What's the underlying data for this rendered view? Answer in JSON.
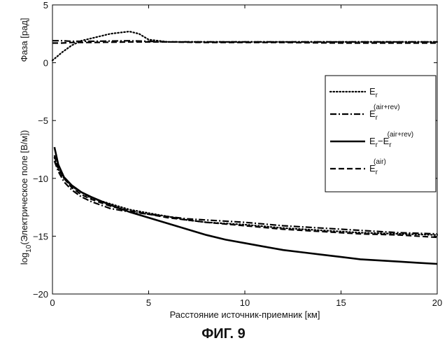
{
  "caption": "ФИГ. 9",
  "chart_data": {
    "type": "line",
    "xlabel": "Расстояние источник-приемник [км]",
    "xlim": [
      0,
      20
    ],
    "ylim": [
      -20,
      5
    ],
    "xticks": [
      0,
      5,
      10,
      15,
      20
    ],
    "yticks": [
      -20,
      -15,
      -10,
      -5,
      0,
      5
    ],
    "ylabel_phase": "Фаза [рад]",
    "ylabel_field": {
      "prefix": "log",
      "subscript": "10",
      "suffix": "(Электрическое поле [В/м])"
    },
    "grid": false,
    "legend_placement": "right",
    "legend": [
      {
        "series": 0,
        "base": "E",
        "sub": "r",
        "sup": "",
        "tail_base": "",
        "tail_sub": "",
        "tail_sup": ""
      },
      {
        "series": 1,
        "base": "E",
        "sub": "r",
        "sup": "(air+rev)",
        "tail_base": "",
        "tail_sub": "",
        "tail_sup": ""
      },
      {
        "series": 2,
        "base": "E",
        "sub": "r",
        "sup": "",
        "tail_base": "−E",
        "tail_sub": "r",
        "tail_sup": "(air+rev)"
      },
      {
        "series": 3,
        "base": "E",
        "sub": "r",
        "sup": "(air)",
        "tail_base": "",
        "tail_sub": "",
        "tail_sup": ""
      }
    ],
    "series": [
      {
        "style": "dotted",
        "phase": {
          "x": [
            0,
            0.5,
            1,
            1.5,
            2,
            2.5,
            3,
            3.5,
            4,
            4.5,
            5,
            5.5,
            6,
            8,
            10,
            12,
            15,
            18,
            20
          ],
          "y": [
            0.2,
            0.9,
            1.5,
            1.9,
            2.1,
            2.3,
            2.5,
            2.6,
            2.7,
            2.5,
            2.0,
            1.9,
            1.8,
            1.8,
            1.8,
            1.8,
            1.8,
            1.8,
            1.8
          ]
        },
        "field": {
          "x": [
            0.1,
            0.3,
            0.6,
            1,
            1.5,
            2,
            3,
            4,
            5,
            6,
            7,
            8,
            10,
            12,
            14,
            16,
            18,
            20
          ],
          "y": [
            -8.2,
            -9.2,
            -10.0,
            -10.7,
            -11.2,
            -11.7,
            -12.2,
            -12.7,
            -13.0,
            -13.3,
            -13.6,
            -13.8,
            -14.0,
            -14.3,
            -14.5,
            -14.7,
            -14.8,
            -14.9
          ]
        }
      },
      {
        "style": "dashdot",
        "phase": {
          "x": [
            0,
            0.5,
            1,
            2,
            4,
            6,
            8,
            10,
            12,
            15,
            18,
            20
          ],
          "y": [
            1.9,
            1.9,
            1.85,
            1.85,
            1.9,
            1.8,
            1.8,
            1.8,
            1.8,
            1.8,
            1.8,
            1.8
          ]
        },
        "field": {
          "x": [
            0.1,
            0.3,
            0.6,
            1,
            1.5,
            2,
            3,
            4,
            5,
            6,
            7,
            8,
            10,
            12,
            14,
            16,
            18,
            20
          ],
          "y": [
            -8.5,
            -9.4,
            -10.3,
            -11.0,
            -11.6,
            -12.0,
            -12.6,
            -12.9,
            -13.1,
            -13.3,
            -13.5,
            -13.6,
            -13.8,
            -14.1,
            -14.3,
            -14.5,
            -14.7,
            -14.8
          ]
        }
      },
      {
        "style": "solid",
        "phase": null,
        "field": {
          "x": [
            0.1,
            0.3,
            0.6,
            1,
            1.5,
            2,
            3,
            4,
            5,
            6,
            7,
            8,
            9,
            10,
            11,
            12,
            13,
            14,
            15,
            16,
            17,
            18,
            19,
            20
          ],
          "y": [
            -7.3,
            -8.8,
            -9.9,
            -10.6,
            -11.2,
            -11.6,
            -12.3,
            -12.9,
            -13.4,
            -13.9,
            -14.4,
            -14.9,
            -15.3,
            -15.6,
            -15.9,
            -16.2,
            -16.4,
            -16.6,
            -16.8,
            -17.0,
            -17.1,
            -17.2,
            -17.3,
            -17.4
          ]
        }
      },
      {
        "style": "dashed",
        "phase": {
          "x": [
            0,
            0.5,
            1,
            1.5,
            2,
            4,
            6,
            8,
            10,
            12,
            15,
            18,
            20
          ],
          "y": [
            1.7,
            1.7,
            1.75,
            1.75,
            1.75,
            1.8,
            1.8,
            1.75,
            1.75,
            1.75,
            1.7,
            1.7,
            1.7
          ]
        },
        "field": {
          "x": [
            0.1,
            0.3,
            0.6,
            1,
            1.5,
            2,
            3,
            4,
            5,
            6,
            7,
            8,
            10,
            12,
            14,
            16,
            18,
            20
          ],
          "y": [
            -8.0,
            -9.1,
            -10.0,
            -10.8,
            -11.4,
            -11.8,
            -12.4,
            -12.8,
            -13.1,
            -13.4,
            -13.6,
            -13.8,
            -14.1,
            -14.4,
            -14.6,
            -14.8,
            -14.9,
            -15.1
          ]
        }
      }
    ]
  }
}
